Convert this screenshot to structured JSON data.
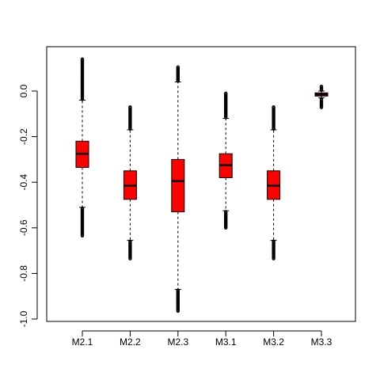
{
  "chart_data": {
    "type": "boxplot",
    "categories": [
      "M2.1",
      "M2.2",
      "M2.3",
      "M3.1",
      "M3.2",
      "M3.3"
    ],
    "ylim": [
      -1.0,
      0.2
    ],
    "yticks": [
      -1.0,
      -0.8,
      -0.6,
      -0.4,
      -0.2,
      0.0
    ],
    "ytick_labels": [
      "-1.0",
      "-0.8",
      "-0.6",
      "-0.4",
      "-0.2",
      "0.0"
    ],
    "title": "",
    "xlabel": "",
    "ylabel": "",
    "grid": false,
    "box_color": "#ff0000",
    "series": [
      {
        "category": "M2.1",
        "q1": -0.335,
        "median": -0.275,
        "q3": -0.22,
        "whisker_low": -0.51,
        "whisker_high": -0.04,
        "outliers_low": [
          -0.52,
          -0.54,
          -0.56,
          -0.58,
          -0.6,
          -0.62,
          -0.635
        ],
        "outliers_high": [
          -0.03,
          -0.02,
          0.0,
          0.02,
          0.04,
          0.06,
          0.08,
          0.14
        ]
      },
      {
        "category": "M2.2",
        "q1": -0.475,
        "median": -0.415,
        "q3": -0.35,
        "whisker_low": -0.655,
        "whisker_high": -0.17,
        "outliers_low": [
          -0.665,
          -0.68,
          -0.695,
          -0.71,
          -0.725,
          -0.735
        ],
        "outliers_high": [
          -0.16,
          -0.14,
          -0.12,
          -0.1,
          -0.08,
          -0.07
        ]
      },
      {
        "category": "M2.3",
        "q1": -0.53,
        "median": -0.395,
        "q3": -0.3,
        "whisker_low": -0.87,
        "whisker_high": 0.04,
        "outliers_low": [
          -0.88,
          -0.9,
          -0.92,
          -0.94,
          -0.955,
          -0.965
        ],
        "outliers_high": [
          0.05,
          0.065,
          0.08,
          0.09,
          0.105
        ]
      },
      {
        "category": "M3.1",
        "q1": -0.38,
        "median": -0.325,
        "q3": -0.275,
        "whisker_low": -0.525,
        "whisker_high": -0.12,
        "outliers_low": [
          -0.535,
          -0.55,
          -0.565,
          -0.58,
          -0.6
        ],
        "outliers_high": [
          -0.11,
          -0.09,
          -0.07,
          -0.05,
          -0.03,
          -0.01
        ]
      },
      {
        "category": "M3.2",
        "q1": -0.475,
        "median": -0.415,
        "q3": -0.35,
        "whisker_low": -0.655,
        "whisker_high": -0.17,
        "outliers_low": [
          -0.665,
          -0.68,
          -0.695,
          -0.71,
          -0.725,
          -0.735
        ],
        "outliers_high": [
          -0.16,
          -0.14,
          -0.12,
          -0.1,
          -0.08,
          -0.07
        ]
      },
      {
        "category": "M3.3",
        "q1": -0.022,
        "median": -0.015,
        "q3": -0.008,
        "whisker_low": -0.03,
        "whisker_high": 0.0,
        "outliers_low": [
          -0.035,
          -0.045,
          -0.055,
          -0.065,
          -0.072
        ],
        "outliers_high": [
          0.005,
          0.01,
          0.015,
          0.02
        ]
      }
    ]
  }
}
